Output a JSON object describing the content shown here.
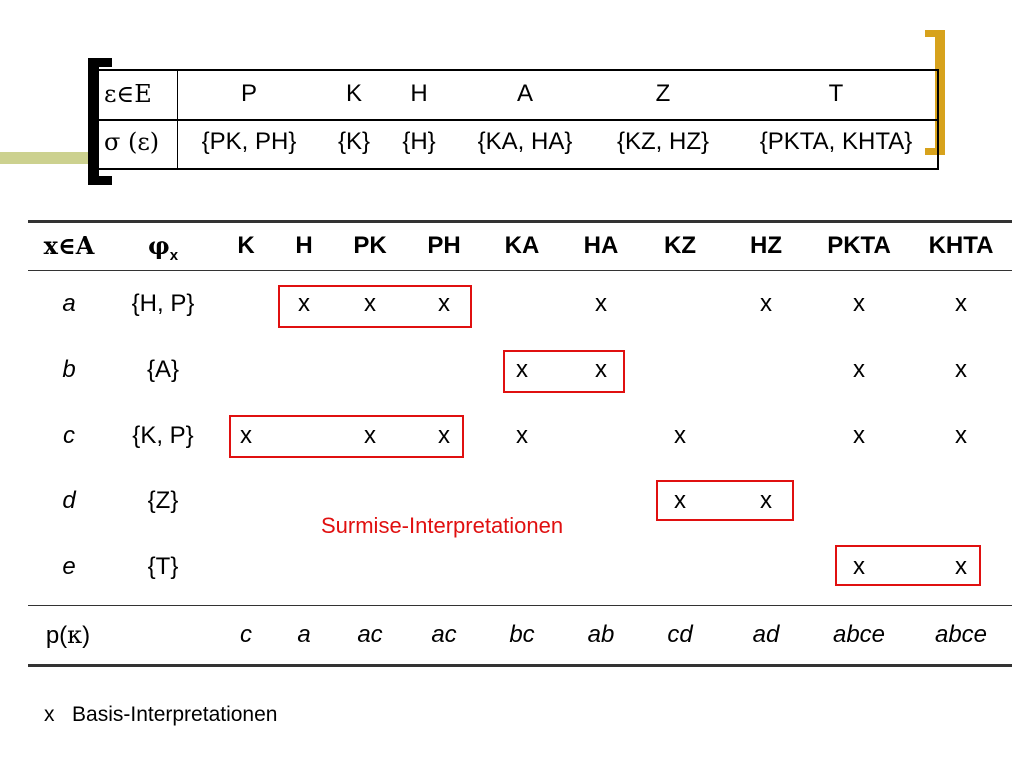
{
  "top_table": {
    "row1_label": "ε∈E",
    "row2_label": "σ (ε)",
    "headers": [
      "P",
      "K",
      "H",
      "A",
      "Z",
      "T"
    ],
    "values": [
      "{PK, PH}",
      "{K}",
      "{H}",
      "{KA, HA}",
      "{KZ, HZ}",
      "{PKTA, KHTA}"
    ]
  },
  "main_table": {
    "col_header_1": "x∈A",
    "col_header_2": "φ",
    "col_header_2_sub": "x",
    "columns": [
      "K",
      "H",
      "PK",
      "PH",
      "KA",
      "HA",
      "KZ",
      "HZ",
      "PKTA",
      "KHTA"
    ],
    "rows": [
      {
        "label": "a",
        "set": "{H, P}",
        "marks": [
          "",
          "x",
          "x",
          "x",
          "",
          "x",
          "",
          "x",
          "x",
          "x"
        ]
      },
      {
        "label": "b",
        "set": "{A}",
        "marks": [
          "",
          "",
          "",
          "",
          "x",
          "x",
          "",
          "",
          "x",
          "x"
        ]
      },
      {
        "label": "c",
        "set": "{K, P}",
        "marks": [
          "x",
          "",
          "x",
          "x",
          "x",
          "",
          "x",
          "",
          "x",
          "x"
        ]
      },
      {
        "label": "d",
        "set": "{Z}",
        "marks": [
          "",
          "",
          "",
          "",
          "",
          "",
          "x",
          "x",
          "",
          ""
        ]
      },
      {
        "label": "e",
        "set": "{T}",
        "marks": [
          "",
          "",
          "",
          "",
          "",
          "",
          "",
          "",
          "x",
          "x"
        ]
      }
    ],
    "footer_label_prefix": "p(",
    "footer_label_greek": "κ",
    "footer_label_suffix": ")",
    "footer_values": [
      "c",
      "a",
      "ac",
      "ac",
      "bc",
      "ab",
      "cd",
      "ad",
      "abce",
      "abce"
    ]
  },
  "surmise_label": "Surmise-Interpretationen",
  "legend": {
    "symbol": "x",
    "text": "Basis-Interpretationen"
  },
  "colors": {
    "highlight": "#e01010",
    "bracket_left": "#000000",
    "bracket_right": "#d7a21c",
    "deco_line": "#ccd18f"
  }
}
